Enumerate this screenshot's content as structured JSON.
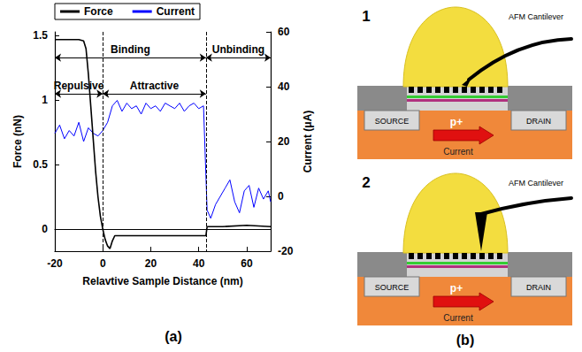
{
  "chart_data": {
    "type": "line",
    "x_label": "Relavtive Sample Distance (nm)",
    "y_label": "Force (nN)",
    "y2_label": "Current (μA)",
    "xlim": [
      -20,
      70
    ],
    "xticks": [
      -20,
      0,
      20,
      40,
      60
    ],
    "ylim": [
      -0.17,
      1.53
    ],
    "yticks": [
      0,
      0.5,
      1,
      1.5
    ],
    "y2lim": [
      -20,
      60
    ],
    "y2ticks": [
      -20,
      0,
      20,
      40,
      60
    ],
    "grid": false,
    "legend": "top",
    "series": [
      {
        "name": "Force",
        "color": "#000000",
        "axis": "y",
        "x": [
          -20,
          -15,
          -10,
          -8,
          -7,
          -6,
          -5,
          -4,
          -3,
          -2,
          -1,
          0,
          1,
          2,
          3,
          4,
          5,
          10,
          20,
          30,
          40,
          43,
          43.5,
          50,
          60,
          70
        ],
        "values": [
          1.47,
          1.47,
          1.47,
          1.46,
          1.4,
          1.2,
          0.95,
          0.7,
          0.45,
          0.25,
          0.1,
          0.0,
          -0.08,
          -0.13,
          -0.15,
          -0.09,
          -0.05,
          -0.05,
          -0.05,
          -0.05,
          -0.05,
          -0.05,
          0.02,
          0.02,
          0.03,
          0.02
        ]
      },
      {
        "name": "Current",
        "color": "#0000ff",
        "axis": "y2",
        "x": [
          -20,
          -18,
          -16,
          -14,
          -12,
          -10,
          -8,
          -6,
          -4,
          -2,
          0,
          2,
          4,
          6,
          8,
          10,
          12,
          14,
          16,
          18,
          20,
          22,
          24,
          26,
          28,
          30,
          32,
          34,
          36,
          38,
          40,
          42,
          43.5,
          45,
          47,
          49,
          51,
          53,
          55,
          57,
          59,
          61,
          63,
          65,
          67,
          69,
          70
        ],
        "values": [
          23,
          26,
          21,
          24,
          22,
          27,
          20,
          25,
          23,
          22,
          24,
          27,
          33,
          35,
          31,
          34,
          32,
          33,
          30,
          34,
          32,
          33,
          31,
          34,
          33,
          32,
          34,
          31,
          33,
          34,
          32,
          33,
          -5,
          -8,
          -3,
          0,
          3,
          6,
          -2,
          -6,
          2,
          4,
          -4,
          3,
          -1,
          2,
          -2
        ]
      }
    ],
    "annotations": [
      {
        "text": "Binding",
        "x_from": -20,
        "x_to": 43,
        "y": 1.33
      },
      {
        "text": "Unbinding",
        "x_from": 43,
        "x_to": 70,
        "y": 1.33
      },
      {
        "text": "Repulsive",
        "x_from": -20,
        "x_to": 0,
        "y": 1.05
      },
      {
        "text": "Attractive",
        "x_from": 0,
        "x_to": 43,
        "y": 1.05
      }
    ]
  },
  "panel_labels": {
    "a": "(a)",
    "b": "(b)"
  },
  "diagram": {
    "panels": [
      {
        "number": "1",
        "cantilever": "AFM Cantilever",
        "source": "SOURCE",
        "drain": "DRAIN",
        "carrier": "p+",
        "current": "Current"
      },
      {
        "number": "2",
        "cantilever": "AFM Cantilever",
        "source": "SOURCE",
        "drain": "DRAIN",
        "carrier": "p+",
        "current": "Current"
      }
    ]
  }
}
